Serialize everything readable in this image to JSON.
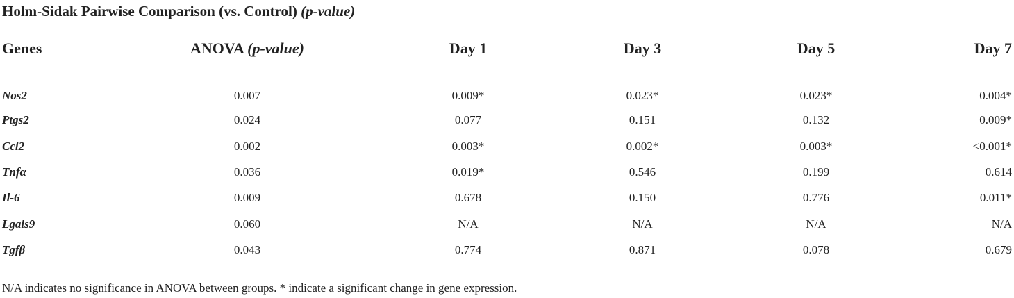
{
  "caption": {
    "main": "Holm-Sidak Pairwise Comparison (vs. Control)",
    "italic": "(p-value)"
  },
  "headers": {
    "genes": "Genes",
    "anova_main": "ANOVA",
    "anova_italic": "(p-value)",
    "day1": "Day 1",
    "day3": "Day 3",
    "day5": "Day 5",
    "day7": "Day 7"
  },
  "rows": [
    {
      "gene": "Nos2",
      "anova": "0.007",
      "day1": "0.009*",
      "day3": "0.023*",
      "day5": "0.023*",
      "day7": "0.004*"
    },
    {
      "gene": "Ptgs2",
      "anova": "0.024",
      "day1": "0.077",
      "day3": "0.151",
      "day5": "0.132",
      "day7": "0.009*"
    },
    {
      "gene": "Ccl2",
      "anova": "0.002",
      "day1": "0.003*",
      "day3": "0.002*",
      "day5": "0.003*",
      "day7": "<0.001*"
    },
    {
      "gene": "Tnfα",
      "anova": "0.036",
      "day1": "0.019*",
      "day3": "0.546",
      "day5": "0.199",
      "day7": "0.614"
    },
    {
      "gene": "Il-6",
      "anova": "0.009",
      "day1": "0.678",
      "day3": "0.150",
      "day5": "0.776",
      "day7": "0.011*"
    },
    {
      "gene": "Lgals9",
      "anova": "0.060",
      "day1": "N/A",
      "day3": "N/A",
      "day5": "N/A",
      "day7": "N/A"
    },
    {
      "gene": "Tgfβ",
      "anova": "0.043",
      "day1": "0.774",
      "day3": "0.871",
      "day5": "0.078",
      "day7": "0.679"
    }
  ],
  "footnote": "N/A indicates no significance in ANOVA between groups. * indicate a significant change in gene expression."
}
